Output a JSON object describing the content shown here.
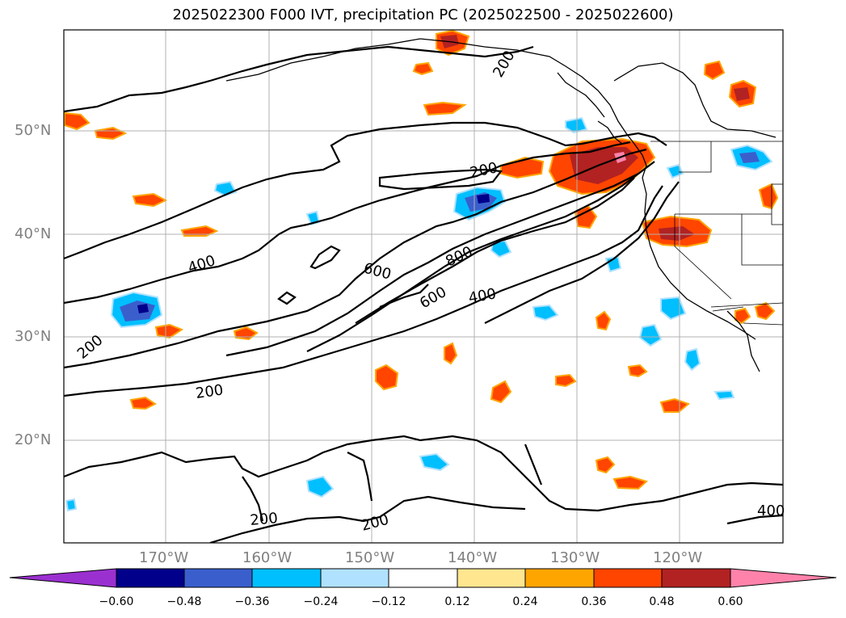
{
  "title": "2025022300 F000 IVT, precipitation PC (2025022500 - 2025022600)",
  "lat_labels": [
    "50°N",
    "40°N",
    "30°N",
    "20°N"
  ],
  "lon_labels": [
    "170°W",
    "160°W",
    "150°W",
    "140°W",
    "130°W",
    "120°W"
  ],
  "contour_labels": [
    "200",
    "200",
    "200",
    "200",
    "200",
    "200",
    "400",
    "400",
    "400",
    "600",
    "600",
    "800"
  ],
  "colorbar": {
    "ticks": [
      "−0.60",
      "−0.48",
      "−0.36",
      "−0.24",
      "−0.12",
      "0.12",
      "0.24",
      "0.36",
      "0.48",
      "0.60"
    ],
    "colors": [
      "#9b30d0",
      "#00008b",
      "#3a5fcd",
      "#00bfff",
      "#b0e2ff",
      "#ffffff",
      "#ffe68f",
      "#ffa500",
      "#ff4500",
      "#b22222",
      "#ff82ab"
    ]
  }
}
